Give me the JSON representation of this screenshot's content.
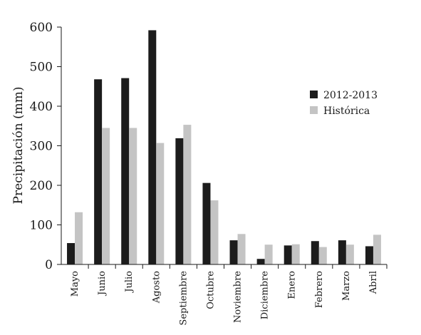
{
  "chart_data": {
    "type": "bar",
    "title": "",
    "xlabel": "",
    "ylabel": "Precipitación (mm)",
    "ylim": [
      0,
      600
    ],
    "yticks": [
      0,
      100,
      200,
      300,
      400,
      500,
      600
    ],
    "grid": false,
    "legend_position": "right",
    "categories": [
      "Mayo",
      "Junio",
      "Julio",
      "Agosto",
      "Septiembre",
      "Octubre",
      "Noviembre",
      "Diciembre",
      "Enero",
      "Febrero",
      "Marzo",
      "Abril"
    ],
    "series": [
      {
        "name": "2012-2013",
        "color": "#1c1c1c",
        "values": [
          54,
          468,
          471,
          592,
          319,
          206,
          61,
          14,
          48,
          59,
          61,
          46
        ]
      },
      {
        "name": "Histórica",
        "color": "#c4c4c4",
        "values": [
          132,
          345,
          345,
          307,
          353,
          162,
          77,
          50,
          51,
          44,
          50,
          75
        ]
      }
    ]
  }
}
